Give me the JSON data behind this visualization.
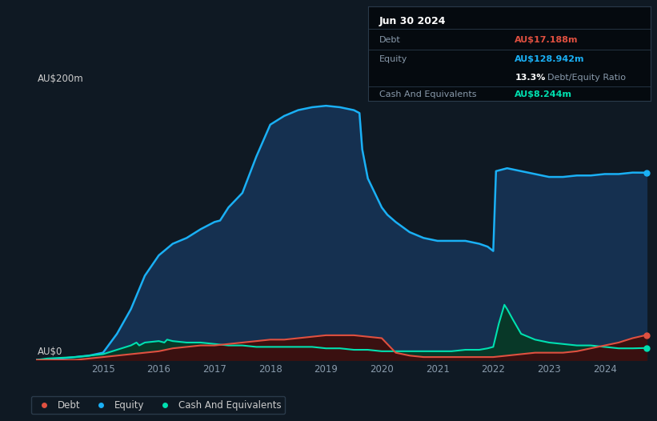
{
  "bg_color": "#0f1923",
  "plot_bg_color": "#0f1923",
  "grid_color": "#1e2d3d",
  "ylabel_top": "AU$200m",
  "ylabel_bottom": "AU$0",
  "ylim": [
    0,
    200
  ],
  "equity_color": "#1ab0f5",
  "equity_fill": "#153050",
  "debt_color": "#e05040",
  "cash_color": "#00e0b0",
  "equity_label": "Equity",
  "debt_label": "Debt",
  "cash_label": "Cash And Equivalents",
  "info_box": {
    "date": "Jun 30 2024",
    "debt_label": "Debt",
    "debt_value": "AU$17.188m",
    "debt_color": "#e05040",
    "equity_label": "Equity",
    "equity_value": "AU$128.942m",
    "equity_color": "#1ab0f5",
    "ratio_bold": "13.3%",
    "ratio_text": "Debt/Equity Ratio",
    "cash_label": "Cash And Equivalents",
    "cash_value": "AU$8.244m",
    "cash_color": "#00e0b0",
    "bg_color": "#050a0f",
    "border_color": "#2a3a4a",
    "text_color": "#8899aa",
    "title_color": "#ffffff"
  },
  "equity_x": [
    2013.8,
    2014.0,
    2014.25,
    2014.5,
    2014.75,
    2015.0,
    2015.25,
    2015.5,
    2015.75,
    2016.0,
    2016.25,
    2016.5,
    2016.75,
    2017.0,
    2017.1,
    2017.25,
    2017.5,
    2017.75,
    2018.0,
    2018.25,
    2018.5,
    2018.75,
    2019.0,
    2019.25,
    2019.5,
    2019.6,
    2019.65,
    2019.75,
    2020.0,
    2020.1,
    2020.25,
    2020.5,
    2020.75,
    2021.0,
    2021.25,
    2021.5,
    2021.75,
    2021.9,
    2022.0,
    2022.05,
    2022.25,
    2022.5,
    2022.75,
    2023.0,
    2023.25,
    2023.5,
    2023.75,
    2024.0,
    2024.25,
    2024.5,
    2024.75
  ],
  "equity_y": [
    0,
    0,
    1,
    2,
    3,
    5,
    18,
    35,
    58,
    72,
    80,
    84,
    90,
    95,
    96,
    105,
    115,
    140,
    162,
    168,
    172,
    174,
    175,
    174,
    172,
    170,
    145,
    125,
    105,
    100,
    95,
    88,
    84,
    82,
    82,
    82,
    80,
    78,
    75,
    130,
    132,
    130,
    128,
    126,
    126,
    127,
    127,
    128,
    128,
    129,
    128.942
  ],
  "debt_x": [
    2013.8,
    2014.0,
    2014.5,
    2014.75,
    2015.0,
    2015.25,
    2015.5,
    2015.75,
    2016.0,
    2016.25,
    2016.5,
    2016.75,
    2017.0,
    2017.25,
    2017.5,
    2017.75,
    2018.0,
    2018.25,
    2018.5,
    2018.75,
    2019.0,
    2019.25,
    2019.5,
    2019.75,
    2020.0,
    2020.25,
    2020.5,
    2020.75,
    2021.0,
    2021.25,
    2021.5,
    2021.75,
    2022.0,
    2022.25,
    2022.5,
    2022.75,
    2023.0,
    2023.25,
    2023.5,
    2023.75,
    2024.0,
    2024.25,
    2024.5,
    2024.75
  ],
  "debt_y": [
    0,
    0,
    0,
    1,
    2,
    3,
    4,
    5,
    6,
    8,
    9,
    10,
    10,
    11,
    12,
    13,
    14,
    14,
    15,
    16,
    17,
    17,
    17,
    16,
    15,
    5,
    3,
    2,
    2,
    2,
    2,
    2,
    2,
    3,
    4,
    5,
    5,
    5,
    6,
    8,
    10,
    12,
    15,
    17.188
  ],
  "cash_x": [
    2013.8,
    2014.0,
    2014.5,
    2014.75,
    2015.0,
    2015.25,
    2015.5,
    2015.6,
    2015.65,
    2015.75,
    2016.0,
    2016.1,
    2016.15,
    2016.25,
    2016.5,
    2016.75,
    2017.0,
    2017.25,
    2017.5,
    2017.75,
    2018.0,
    2018.25,
    2018.5,
    2018.75,
    2019.0,
    2019.25,
    2019.5,
    2019.75,
    2020.0,
    2020.25,
    2020.5,
    2020.75,
    2021.0,
    2021.25,
    2021.5,
    2021.75,
    2021.9,
    2022.0,
    2022.1,
    2022.2,
    2022.25,
    2022.35,
    2022.5,
    2022.75,
    2023.0,
    2023.25,
    2023.5,
    2023.75,
    2024.0,
    2024.25,
    2024.5,
    2024.75
  ],
  "cash_y": [
    0,
    1,
    2,
    3,
    4,
    7,
    10,
    12,
    10,
    12,
    13,
    12,
    14,
    13,
    12,
    12,
    11,
    10,
    10,
    9,
    9,
    9,
    9,
    9,
    8,
    8,
    7,
    7,
    6,
    6,
    6,
    6,
    6,
    6,
    7,
    7,
    8,
    9,
    25,
    38,
    35,
    28,
    18,
    14,
    12,
    11,
    10,
    10,
    9,
    8,
    8,
    8.244
  ],
  "xticks": [
    2015,
    2016,
    2017,
    2018,
    2019,
    2020,
    2021,
    2022,
    2023,
    2024
  ],
  "legend_items": [
    {
      "label": "Debt",
      "color": "#e05040"
    },
    {
      "label": "Equity",
      "color": "#1ab0f5"
    },
    {
      "label": "Cash And Equivalents",
      "color": "#00e0b0"
    }
  ]
}
